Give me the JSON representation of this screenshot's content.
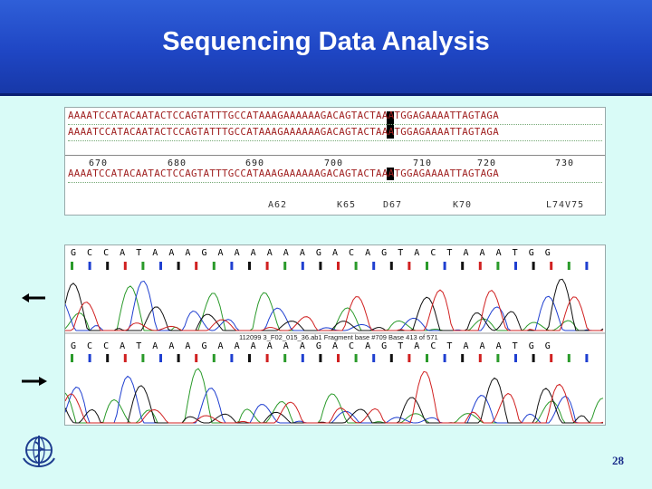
{
  "slide": {
    "title": "Sequencing Data Analysis",
    "page_number": "28"
  },
  "alignment": {
    "seq1": "AAAATCCATACAATACTCCAGTATTTGCCATAAAGAAAAAAGACAGTACTAAATGGAGAAAATTAGTAGA",
    "seq2": "AAAATCCATACAATACTCCAGTATTTGCCATAAAGAAAAAAGACAGTACTAAATGGAGAAAATTAGTAGA",
    "seq3": "AAAATCCATACAATACTCCAGTATTTGCCATAAAGAAAAAAGACAGTACTAAATGGAGAAAATTAGTAGA",
    "positions": [
      "670",
      "680",
      "690",
      "700",
      "710",
      "720",
      "730"
    ],
    "amino_acids": [
      "A62",
      "K65",
      "D67",
      "K70",
      "L74V75"
    ]
  },
  "trace": {
    "top_calls": "G  C  C  A  T  A  A  A  G  A  A  A  A  A  A  G  A  C  A  G  T  A  C  T  A  A  A  T  G  G",
    "bottom_calls": "G  C  C  A  T  A  A  A  G  A  A  A  A  A  A  G  A  C  A  G  T  A  C  T  A  A  A  T  G  G",
    "file_info": "112099 3_F02_015_36.ab1  Fragment base #709  Base 413 of 571"
  },
  "colors": {
    "header": "#1f46c4",
    "background": "#d9fbf7",
    "base_A": "#2a9a2a",
    "base_C": "#1f3fd0",
    "base_G": "#111111",
    "base_T": "#d02020",
    "page_number": "#1a2d8a"
  },
  "icons": [
    "who-emblem-icon",
    "arrow-left-icon",
    "arrow-right-icon"
  ]
}
